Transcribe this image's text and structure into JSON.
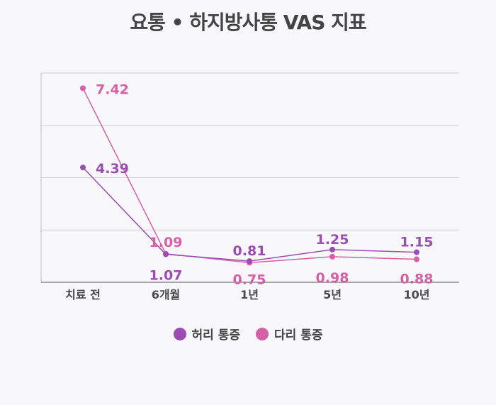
{
  "chart_data": {
    "type": "line",
    "title": "요통 • 하지방사통 VAS 지표",
    "categories": [
      "치료 전",
      "6개월",
      "1년",
      "5년",
      "10년"
    ],
    "series": [
      {
        "name": "허리 통증",
        "values": [
          4.39,
          1.07,
          0.81,
          1.25,
          1.15
        ],
        "color": "#9b4db3"
      },
      {
        "name": "다리 통증",
        "values": [
          7.42,
          1.09,
          0.75,
          0.98,
          0.88
        ],
        "color": "#d660a8"
      }
    ],
    "ylim": [
      0,
      8
    ],
    "xlabel": "",
    "ylabel": "",
    "grid": true,
    "legend_position": "bottom"
  }
}
